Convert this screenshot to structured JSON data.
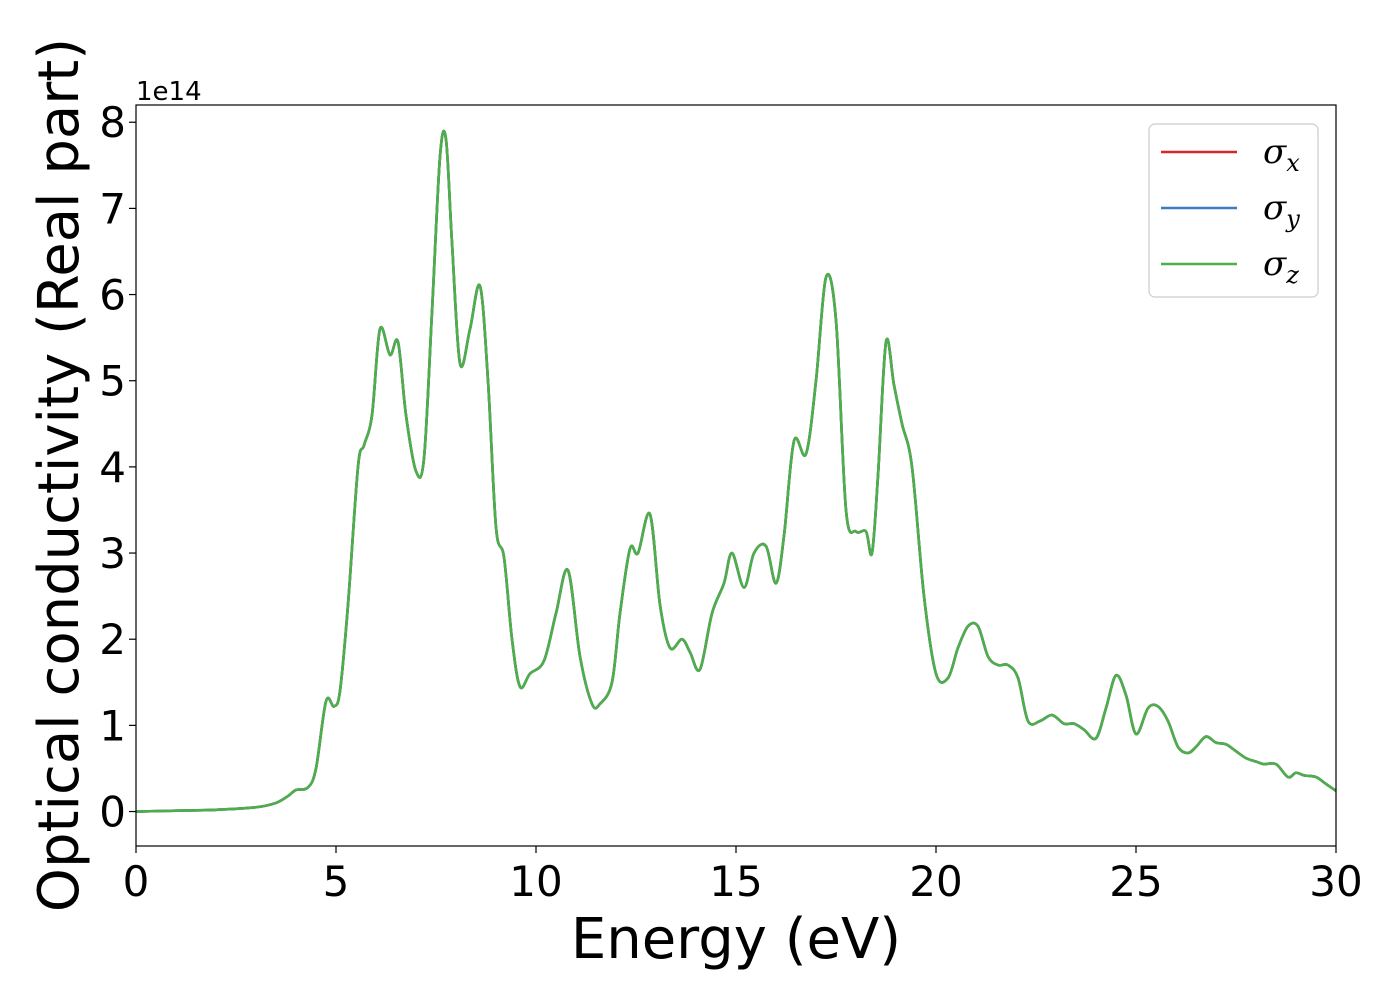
{
  "chart_data": {
    "type": "line",
    "xlabel": "Energy (eV)",
    "ylabel": "Optical conductivity (Real part)",
    "y_offset_label": "1e14",
    "xlim": [
      0,
      30
    ],
    "ylim": [
      -0.4,
      8.2
    ],
    "x_ticks": [
      0,
      5,
      10,
      15,
      20,
      25,
      30
    ],
    "y_ticks": [
      0,
      1,
      2,
      3,
      4,
      5,
      6,
      7,
      8
    ],
    "grid": false,
    "legend_position": "top-right",
    "series_colors": [
      "#d62728",
      "#3a7dbf",
      "#4daf4a"
    ],
    "series": [
      {
        "name": "σx",
        "symbol": "σ",
        "sub": "x"
      },
      {
        "name": "σy",
        "symbol": "σ",
        "sub": "y"
      },
      {
        "name": "σz",
        "symbol": "σ",
        "sub": "z"
      }
    ],
    "x": [
      0,
      1,
      2,
      3,
      3.5,
      3.8,
      4.0,
      4.3,
      4.5,
      4.75,
      4.95,
      5.1,
      5.3,
      5.55,
      5.7,
      5.9,
      6.1,
      6.35,
      6.55,
      6.75,
      7.0,
      7.2,
      7.4,
      7.6,
      7.75,
      7.9,
      8.1,
      8.35,
      8.6,
      8.8,
      9.0,
      9.2,
      9.4,
      9.6,
      9.85,
      10.2,
      10.5,
      10.8,
      11.1,
      11.4,
      11.6,
      11.9,
      12.1,
      12.35,
      12.55,
      12.85,
      13.1,
      13.35,
      13.65,
      13.85,
      14.1,
      14.4,
      14.7,
      14.9,
      15.2,
      15.45,
      15.75,
      16.0,
      16.2,
      16.45,
      16.75,
      17.0,
      17.25,
      17.5,
      17.75,
      18.0,
      18.25,
      18.4,
      18.55,
      18.75,
      18.95,
      19.15,
      19.4,
      19.7,
      20.0,
      20.3,
      20.55,
      20.8,
      21.05,
      21.3,
      21.55,
      21.8,
      22.05,
      22.3,
      22.6,
      22.9,
      23.2,
      23.45,
      23.7,
      24.0,
      24.25,
      24.5,
      24.75,
      25.0,
      25.3,
      25.55,
      25.8,
      26.05,
      26.3,
      26.5,
      26.75,
      27.0,
      27.25,
      27.5,
      27.75,
      28.0,
      28.2,
      28.5,
      28.8,
      29.0,
      29.2,
      29.5,
      29.75,
      30.0
    ],
    "values": [
      0.0,
      0.01,
      0.02,
      0.05,
      0.1,
      0.18,
      0.25,
      0.28,
      0.5,
      1.28,
      1.22,
      1.4,
      2.4,
      4.0,
      4.25,
      4.6,
      5.6,
      5.3,
      5.45,
      4.6,
      3.95,
      4.1,
      5.8,
      7.6,
      7.8,
      6.6,
      5.2,
      5.6,
      6.1,
      5.0,
      3.3,
      2.95,
      2.0,
      1.45,
      1.6,
      1.75,
      2.3,
      2.8,
      1.8,
      1.25,
      1.25,
      1.5,
      2.3,
      3.05,
      3.0,
      3.45,
      2.4,
      1.9,
      2.0,
      1.85,
      1.65,
      2.3,
      2.65,
      3.0,
      2.6,
      3.0,
      3.08,
      2.65,
      3.2,
      4.3,
      4.15,
      5.0,
      6.2,
      5.7,
      3.5,
      3.25,
      3.25,
      3.0,
      3.9,
      5.45,
      4.95,
      4.5,
      4.0,
      2.5,
      1.6,
      1.55,
      1.9,
      2.15,
      2.15,
      1.8,
      1.7,
      1.7,
      1.55,
      1.05,
      1.05,
      1.12,
      1.02,
      1.02,
      0.95,
      0.85,
      1.2,
      1.58,
      1.35,
      0.9,
      1.2,
      1.22,
      1.05,
      0.75,
      0.68,
      0.75,
      0.87,
      0.8,
      0.78,
      0.7,
      0.62,
      0.58,
      0.55,
      0.55,
      0.4,
      0.45,
      0.42,
      0.4,
      0.32,
      0.24
    ]
  }
}
